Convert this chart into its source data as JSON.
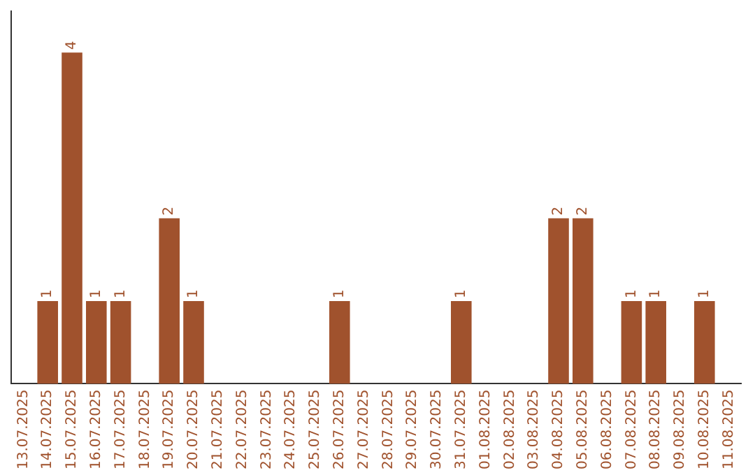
{
  "chart_data": {
    "type": "bar",
    "categories": [
      "13.07.2025",
      "14.07.2025",
      "15.07.2025",
      "16.07.2025",
      "17.07.2025",
      "18.07.2025",
      "19.07.2025",
      "20.07.2025",
      "21.07.2025",
      "22.07.2025",
      "23.07.2025",
      "24.07.2025",
      "25.07.2025",
      "26.07.2025",
      "27.07.2025",
      "28.07.2025",
      "29.07.2025",
      "30.07.2025",
      "31.07.2025",
      "01.08.2025",
      "02.08.2025",
      "03.08.2025",
      "04.08.2025",
      "05.08.2025",
      "06.08.2025",
      "07.08.2025",
      "08.08.2025",
      "09.08.2025",
      "10.08.2025",
      "11.08.2025"
    ],
    "values": [
      0,
      1,
      4,
      1,
      1,
      0,
      2,
      1,
      0,
      0,
      0,
      0,
      0,
      1,
      0,
      0,
      0,
      0,
      1,
      0,
      0,
      0,
      2,
      2,
      0,
      1,
      1,
      0,
      1,
      0
    ],
    "value_labels": [
      null,
      "1",
      "4",
      "1",
      "1",
      null,
      "2",
      "1",
      null,
      null,
      null,
      null,
      null,
      "1",
      null,
      null,
      null,
      null,
      "1",
      null,
      null,
      null,
      "2",
      "2",
      null,
      "1",
      "1",
      null,
      "1",
      null
    ],
    "color": "#a0522d",
    "grid": false,
    "legend": false,
    "tick_labels": "x"
  }
}
